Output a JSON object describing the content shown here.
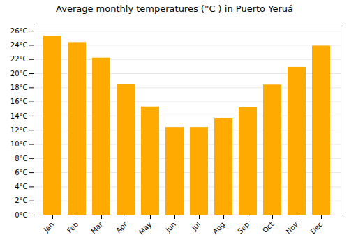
{
  "chart_data": {
    "type": "bar",
    "title": "Average monthly temperatures (°C ) in Puerto Yeruá",
    "categories": [
      "Jan",
      "Feb",
      "Mar",
      "Apr",
      "May",
      "Jun",
      "Jul",
      "Aug",
      "Sep",
      "Oct",
      "Nov",
      "Dec"
    ],
    "values": [
      25.3,
      24.4,
      22.2,
      18.5,
      15.3,
      12.4,
      12.4,
      13.7,
      15.2,
      18.4,
      20.9,
      23.9
    ],
    "color": "#FFAA00",
    "ylim": [
      0,
      27
    ],
    "yticks": [
      {
        "value": 0,
        "label": "0°C"
      },
      {
        "value": 2,
        "label": "2°C"
      },
      {
        "value": 4,
        "label": "4°C"
      },
      {
        "value": 6,
        "label": "6°C"
      },
      {
        "value": 8,
        "label": "8°C"
      },
      {
        "value": 10,
        "label": "10°C"
      },
      {
        "value": 12,
        "label": "12°C"
      },
      {
        "value": 14,
        "label": "14°C"
      },
      {
        "value": 16,
        "label": "16°C"
      },
      {
        "value": 18,
        "label": "18°C"
      },
      {
        "value": 20,
        "label": "20°C"
      },
      {
        "value": 22,
        "label": "22°C"
      },
      {
        "value": 24,
        "label": "24°C"
      },
      {
        "value": 26,
        "label": "26°C"
      }
    ],
    "grid": true
  }
}
